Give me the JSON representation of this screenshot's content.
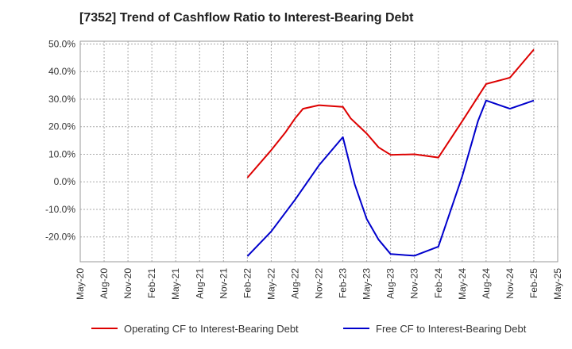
{
  "chart_data": {
    "type": "line",
    "title": "[7352]  Trend of Cashflow Ratio to Interest-Bearing Debt",
    "xlabel": "",
    "ylabel": "",
    "categories": [
      "May-20",
      "Aug-20",
      "Nov-20",
      "Feb-21",
      "May-21",
      "Aug-21",
      "Nov-21",
      "Feb-22",
      "May-22",
      "Aug-22",
      "Nov-22",
      "Feb-23",
      "May-23",
      "Aug-23",
      "Nov-23",
      "Feb-24",
      "May-24",
      "Aug-24",
      "Nov-24",
      "Feb-25",
      "May-25"
    ],
    "ylim": [
      -29,
      51
    ],
    "yticks": [
      50,
      40,
      30,
      20,
      10,
      0,
      -10,
      -20
    ],
    "ytick_labels": [
      "50.0%",
      "40.0%",
      "30.0%",
      "20.0%",
      "10.0%",
      "0.0%",
      "-10.0%",
      "-20.0%"
    ],
    "grid": true,
    "legend": "bottom",
    "series": [
      {
        "name": "Operating CF to Interest-Bearing Debt",
        "color": "#dd0000",
        "points": [
          [
            7,
            1.5
          ],
          [
            8,
            11.5
          ],
          [
            8.6,
            18.0
          ],
          [
            9,
            23.0
          ],
          [
            9.33,
            26.5
          ],
          [
            10,
            27.8
          ],
          [
            11,
            27.2
          ],
          [
            11.33,
            23.0
          ],
          [
            12,
            17.5
          ],
          [
            12.5,
            12.5
          ],
          [
            13,
            9.8
          ],
          [
            14,
            10.0
          ],
          [
            15,
            8.8
          ],
          [
            16,
            22.0
          ],
          [
            17,
            35.5
          ],
          [
            18,
            37.8
          ],
          [
            19,
            48.0
          ]
        ]
      },
      {
        "name": "Free CF to Interest-Bearing Debt",
        "color": "#0000cc",
        "points": [
          [
            7,
            -27.0
          ],
          [
            8,
            -18.0
          ],
          [
            9,
            -6.5
          ],
          [
            10,
            6.0
          ],
          [
            11,
            16.2
          ],
          [
            11.5,
            -1.0
          ],
          [
            12,
            -13.5
          ],
          [
            12.5,
            -21.0
          ],
          [
            13,
            -26.2
          ],
          [
            14,
            -26.8
          ],
          [
            15,
            -23.5
          ],
          [
            16,
            2.0
          ],
          [
            16.66,
            22.0
          ],
          [
            17,
            29.5
          ],
          [
            18,
            26.5
          ],
          [
            19,
            29.5
          ]
        ]
      }
    ]
  }
}
